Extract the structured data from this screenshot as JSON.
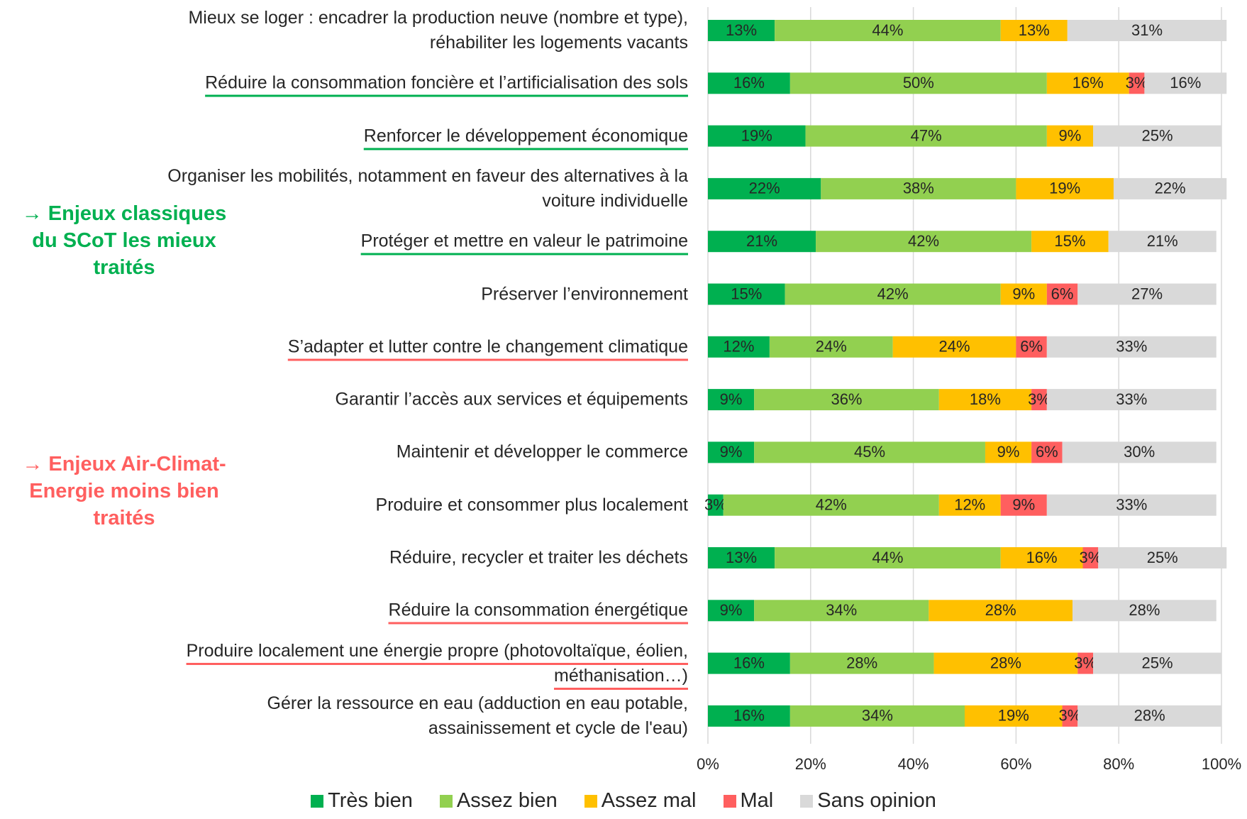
{
  "chart_data": {
    "type": "stacked_bar_horizontal",
    "categories": [
      "Mieux se loger : encadrer la production neuve (nombre et type),\nréhabiliter les logements vacants",
      "Réduire la consommation foncière et l’artificialisation des sols",
      "Renforcer le développement économique",
      "Organiser les mobilités, notamment en faveur des alternatives à la\nvoiture individuelle",
      "Protéger et mettre en valeur le patrimoine",
      "Préserver l’environnement",
      "S’adapter et lutter contre le changement climatique",
      "Garantir l’accès aux services et équipements",
      "Maintenir et développer le commerce",
      "Produire et consommer plus localement",
      "Réduire, recycler et traiter les déchets",
      "Réduire la consommation énergétique",
      "Produire localement une énergie propre (photovoltaïque, éolien,\nméthanisation…)",
      "Gérer la ressource en eau (adduction en eau potable,\nassainissement et cycle de l'eau)"
    ],
    "series": [
      {
        "name": "Très bien",
        "color": "#00b050",
        "values": [
          13,
          16,
          19,
          22,
          21,
          15,
          12,
          9,
          9,
          3,
          13,
          9,
          16,
          16
        ],
        "value_labels": [
          "13%",
          "16%",
          "19%",
          "22%",
          "21%",
          "15%",
          "12%",
          "9%",
          "9%",
          "3%",
          "13%",
          "9%",
          "16%",
          "16%"
        ]
      },
      {
        "name": "Assez bien",
        "color": "#92d050",
        "values": [
          44,
          50,
          47,
          38,
          42,
          42,
          24,
          36,
          45,
          42,
          44,
          34,
          28,
          34
        ],
        "value_labels": [
          "44%",
          "50%",
          "47%",
          "38%",
          "42%",
          "42%",
          "24%",
          "36%",
          "45%",
          "42%",
          "44%",
          "34%",
          "28%",
          "34%"
        ]
      },
      {
        "name": "Assez mal",
        "color": "#ffc000",
        "values": [
          13,
          16,
          9,
          19,
          15,
          9,
          24,
          18,
          9,
          12,
          16,
          28,
          28,
          19
        ],
        "value_labels": [
          "13%",
          "16%",
          "9%",
          "19%",
          "15%",
          "9%",
          "24%",
          "18%",
          "9%",
          "12%",
          "16%",
          "28%",
          "28%",
          "19%"
        ]
      },
      {
        "name": "Mal",
        "color": "#ff5f5f",
        "values": [
          null,
          3,
          null,
          null,
          null,
          6,
          6,
          3,
          6,
          9,
          3,
          null,
          3,
          3
        ],
        "value_labels": [
          null,
          "3%",
          null,
          null,
          null,
          "6%",
          "6%",
          "3%",
          "6%",
          "9%",
          "3%",
          null,
          "3%",
          "3%"
        ]
      },
      {
        "name": "Sans opinion",
        "color": "#d9d9d9",
        "values": [
          31,
          16,
          25,
          22,
          21,
          27,
          33,
          33,
          30,
          33,
          25,
          28,
          25,
          28
        ],
        "value_labels": [
          "31%",
          "16%",
          "25%",
          "22%",
          "21%",
          "27%",
          "33%",
          "33%",
          "30%",
          "33%",
          "25%",
          "28%",
          "25%",
          "28%"
        ]
      }
    ],
    "xlim": [
      0,
      100
    ],
    "xticks": [
      {
        "value": 0,
        "label": "0%"
      },
      {
        "value": 20,
        "label": "20%"
      },
      {
        "value": 40,
        "label": "40%"
      },
      {
        "value": 60,
        "label": "60%"
      },
      {
        "value": 80,
        "label": "80%"
      },
      {
        "value": 100,
        "label": "100%"
      }
    ],
    "grid": true,
    "legend": "bottom",
    "annotations": [
      {
        "text": "→ Enjeux classiques\ndu SCoT les mieux\ntraités",
        "color": "#00b050"
      },
      {
        "text": "→ Enjeux Air-Climat-\nEnergie moins bien\ntraités",
        "color": "#ff5f5f"
      }
    ]
  }
}
